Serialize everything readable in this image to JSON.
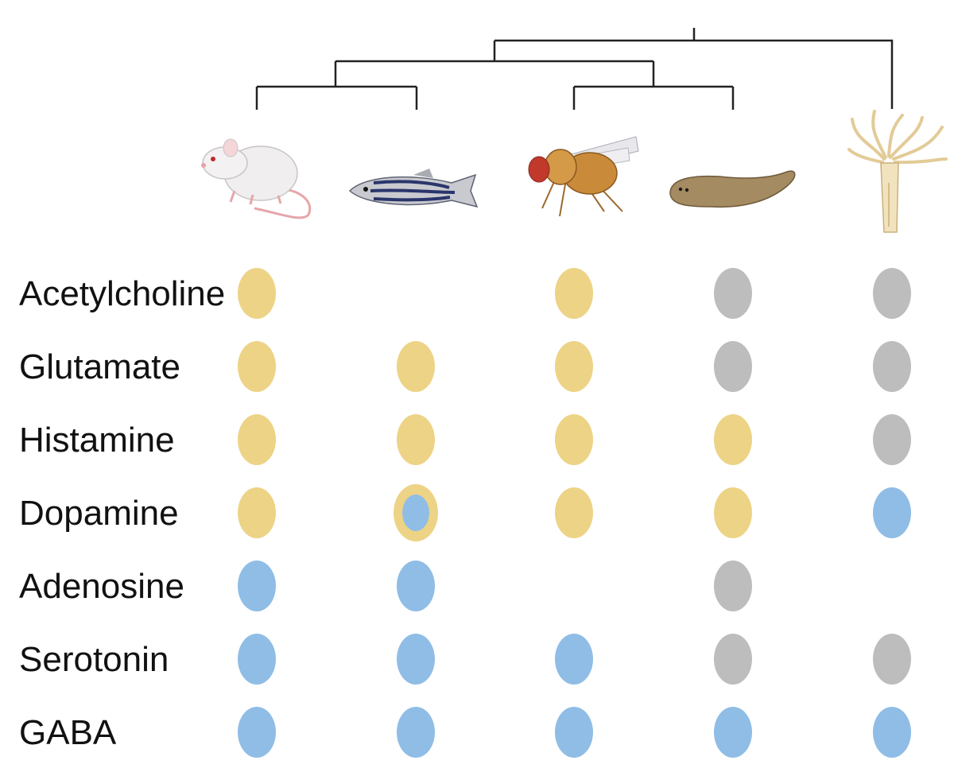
{
  "species": [
    {
      "icon": "mouse-icon"
    },
    {
      "icon": "zebrafish-icon"
    },
    {
      "icon": "fruit-fly-icon"
    },
    {
      "icon": "planarian-icon"
    },
    {
      "icon": "hydra-icon"
    }
  ],
  "legend_colors": {
    "yellow": "#EDD386",
    "blue": "#8FBDE6",
    "gray": "#BDBDBD"
  },
  "rows": [
    {
      "label": "Acetylcholine",
      "cells": [
        "yellow",
        null,
        "yellow",
        "gray",
        "gray"
      ]
    },
    {
      "label": "Glutamate",
      "cells": [
        "yellow",
        "yellow",
        "yellow",
        "gray",
        "gray"
      ]
    },
    {
      "label": "Histamine",
      "cells": [
        "yellow",
        "yellow",
        "yellow",
        "yellow",
        "gray"
      ]
    },
    {
      "label": "Dopamine",
      "cells": [
        "yellow",
        "yellow+blue",
        "yellow",
        "yellow",
        "blue"
      ]
    },
    {
      "label": "Adenosine",
      "cells": [
        "blue",
        "blue",
        null,
        "gray",
        null
      ]
    },
    {
      "label": "Serotonin",
      "cells": [
        "blue",
        "blue",
        "blue",
        "gray",
        "gray"
      ]
    },
    {
      "label": "GABA",
      "cells": [
        "blue",
        "blue",
        "blue",
        "blue",
        "blue"
      ]
    }
  ]
}
